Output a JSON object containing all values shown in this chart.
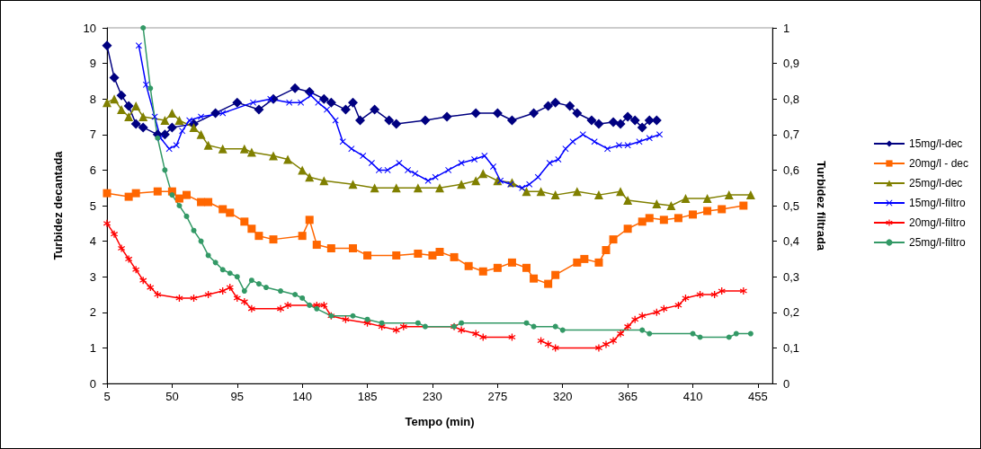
{
  "chart_data": {
    "type": "line",
    "xlabel": "Tempo (min)",
    "ylabel": "Turbidez decantada",
    "y2label": "Turbidez filtrada",
    "xlim": [
      5,
      465
    ],
    "xticks": [
      5,
      50,
      95,
      140,
      185,
      230,
      275,
      320,
      365,
      410,
      455
    ],
    "ylim": [
      0,
      10
    ],
    "yticks": [
      0,
      1,
      2,
      3,
      4,
      5,
      6,
      7,
      8,
      9,
      10
    ],
    "y2lim": [
      0,
      1
    ],
    "y2ticks": [
      0,
      {
        "value": 0.1,
        "label": "0,1"
      },
      {
        "value": 0.2,
        "label": "0,2"
      },
      {
        "value": 0.3,
        "label": "0,3"
      },
      {
        "value": 0.4,
        "label": "0,4"
      },
      {
        "value": 0.5,
        "label": "0,5"
      },
      {
        "value": 0.6,
        "label": "0,6"
      },
      {
        "value": 0.7,
        "label": "0,7"
      },
      {
        "value": 0.8,
        "label": "0,8"
      },
      {
        "value": 0.9,
        "label": "0,9"
      },
      1
    ],
    "grid": false,
    "legend": "right",
    "series": [
      {
        "name": "15mg/l-dec",
        "color": "#000080",
        "marker": "diamond",
        "x": [
          5,
          10,
          15,
          20,
          25,
          30,
          40,
          45,
          50,
          65,
          80,
          95,
          110,
          120,
          135,
          145,
          155,
          160,
          170,
          175,
          180,
          190,
          200,
          205,
          225,
          240,
          260,
          275,
          285,
          300,
          310,
          315,
          325,
          330,
          340,
          345,
          355,
          360,
          365,
          370,
          375,
          380,
          385
        ],
        "values": [
          9.5,
          8.6,
          8.1,
          7.8,
          7.3,
          7.2,
          7.0,
          7.0,
          7.2,
          7.3,
          7.6,
          7.9,
          7.7,
          8.0,
          8.3,
          8.2,
          8.0,
          7.9,
          7.7,
          7.9,
          7.4,
          7.7,
          7.4,
          7.3,
          7.4,
          7.5,
          7.6,
          7.6,
          7.4,
          7.6,
          7.8,
          7.9,
          7.8,
          7.6,
          7.4,
          7.3,
          7.35,
          7.3,
          7.5,
          7.4,
          7.2,
          7.4,
          7.4
        ]
      },
      {
        "name": "20mg/l - dec",
        "color": "#ff6600",
        "marker": "square",
        "x": [
          5,
          20,
          25,
          40,
          50,
          55,
          60,
          70,
          75,
          85,
          90,
          100,
          105,
          110,
          120,
          140,
          145,
          150,
          160,
          175,
          185,
          205,
          220,
          230,
          235,
          245,
          255,
          265,
          275,
          285,
          295,
          300,
          310,
          315,
          330,
          335,
          345,
          350,
          355,
          365,
          375,
          380,
          390,
          400,
          410,
          420,
          430,
          445
        ],
        "values": [
          5.35,
          5.25,
          5.35,
          5.4,
          5.4,
          5.2,
          5.3,
          5.1,
          5.1,
          4.9,
          4.8,
          4.55,
          4.35,
          4.15,
          4.05,
          4.15,
          4.6,
          3.9,
          3.8,
          3.8,
          3.6,
          3.6,
          3.65,
          3.6,
          3.7,
          3.55,
          3.3,
          3.15,
          3.25,
          3.4,
          3.25,
          2.95,
          2.8,
          3.05,
          3.4,
          3.5,
          3.4,
          3.75,
          4.05,
          4.35,
          4.55,
          4.65,
          4.6,
          4.65,
          4.75,
          4.85,
          4.9,
          5.0
        ]
      },
      {
        "name": "25mg/l-dec",
        "color": "#808000",
        "marker": "triangle",
        "x": [
          5,
          10,
          15,
          20,
          25,
          30,
          45,
          50,
          55,
          65,
          70,
          75,
          85,
          100,
          105,
          120,
          130,
          140,
          145,
          155,
          175,
          190,
          205,
          220,
          235,
          250,
          260,
          265,
          275,
          285,
          295,
          305,
          315,
          330,
          345,
          360,
          365,
          385,
          395,
          405,
          420,
          435,
          450
        ],
        "values": [
          7.9,
          8.0,
          7.7,
          7.5,
          7.8,
          7.5,
          7.4,
          7.6,
          7.4,
          7.2,
          7.0,
          6.7,
          6.6,
          6.6,
          6.5,
          6.4,
          6.3,
          6.0,
          5.8,
          5.7,
          5.6,
          5.5,
          5.5,
          5.5,
          5.5,
          5.6,
          5.7,
          5.9,
          5.7,
          5.65,
          5.4,
          5.4,
          5.3,
          5.4,
          5.3,
          5.4,
          5.15,
          5.05,
          5.0,
          5.2,
          5.2,
          5.3,
          5.3
        ]
      },
      {
        "name": "15mg/l-filtro",
        "color": "#0000ff",
        "marker": "cross",
        "axis": "y2",
        "x": [
          27,
          32,
          38,
          42,
          48,
          53,
          57,
          62,
          70,
          85,
          106,
          118,
          131,
          139,
          146,
          151,
          157,
          163,
          168,
          174,
          182,
          188,
          193,
          199,
          207,
          213,
          218,
          227,
          232,
          241,
          250,
          259,
          266,
          272,
          277,
          284,
          292,
          297,
          303,
          311,
          317,
          322,
          327,
          334,
          342,
          351,
          359,
          365,
          373,
          380,
          387
        ],
        "values": [
          0.95,
          0.84,
          0.75,
          0.69,
          0.66,
          0.67,
          0.71,
          0.74,
          0.75,
          0.76,
          0.79,
          0.8,
          0.79,
          0.79,
          0.81,
          0.79,
          0.77,
          0.74,
          0.68,
          0.66,
          0.64,
          0.62,
          0.6,
          0.6,
          0.62,
          0.6,
          0.59,
          0.57,
          0.58,
          0.6,
          0.62,
          0.63,
          0.64,
          0.61,
          0.57,
          0.56,
          0.55,
          0.56,
          0.58,
          0.62,
          0.63,
          0.66,
          0.68,
          0.7,
          0.68,
          0.66,
          0.67,
          0.67,
          0.68,
          0.69,
          0.7
        ]
      },
      {
        "name": "20mg/l-filtro",
        "color": "#ff0000",
        "marker": "star",
        "axis": "y2",
        "x": [
          5,
          10,
          15,
          20,
          25,
          30,
          35,
          40,
          55,
          65,
          75,
          85,
          90,
          95,
          100,
          105,
          125,
          130,
          150,
          155,
          160,
          170,
          185,
          195,
          205,
          210,
          245,
          250,
          260,
          265,
          285,
          295,
          305,
          310,
          315,
          345,
          350,
          355,
          360,
          365,
          370,
          375,
          385,
          390,
          400,
          405,
          415,
          425,
          430,
          445
        ],
        "values": [
          0.45,
          0.42,
          0.38,
          0.35,
          0.32,
          0.29,
          0.27,
          0.25,
          0.24,
          0.24,
          0.25,
          0.26,
          0.27,
          0.24,
          0.23,
          0.21,
          0.21,
          0.22,
          0.22,
          0.22,
          0.19,
          0.18,
          0.17,
          0.16,
          0.15,
          0.16,
          0.16,
          0.15,
          0.14,
          0.13,
          0.13,
          null,
          0.12,
          0.11,
          0.1,
          0.1,
          0.11,
          0.12,
          0.14,
          0.16,
          0.18,
          0.19,
          0.2,
          0.21,
          0.22,
          0.24,
          0.25,
          0.25,
          0.26,
          0.26
        ]
      },
      {
        "name": "25mg/l-filtro",
        "color": "#339966",
        "marker": "circle",
        "axis": "y2",
        "x": [
          30,
          35,
          40,
          45,
          50,
          55,
          60,
          65,
          70,
          75,
          80,
          85,
          90,
          95,
          100,
          105,
          110,
          115,
          125,
          135,
          140,
          145,
          150,
          160,
          175,
          185,
          195,
          220,
          225,
          245,
          250,
          295,
          300,
          315,
          320,
          375,
          380,
          410,
          415,
          435,
          440,
          450
        ],
        "values": [
          1.0,
          0.83,
          0.69,
          0.6,
          0.53,
          0.5,
          0.47,
          0.43,
          0.4,
          0.36,
          0.34,
          0.32,
          0.31,
          0.3,
          0.26,
          0.29,
          0.28,
          0.27,
          0.26,
          0.25,
          0.24,
          0.22,
          0.21,
          0.19,
          0.19,
          0.18,
          0.17,
          0.17,
          0.16,
          0.16,
          0.17,
          0.17,
          0.16,
          0.16,
          0.15,
          0.15,
          0.14,
          0.14,
          0.13,
          0.13,
          0.14,
          0.14
        ]
      }
    ]
  }
}
